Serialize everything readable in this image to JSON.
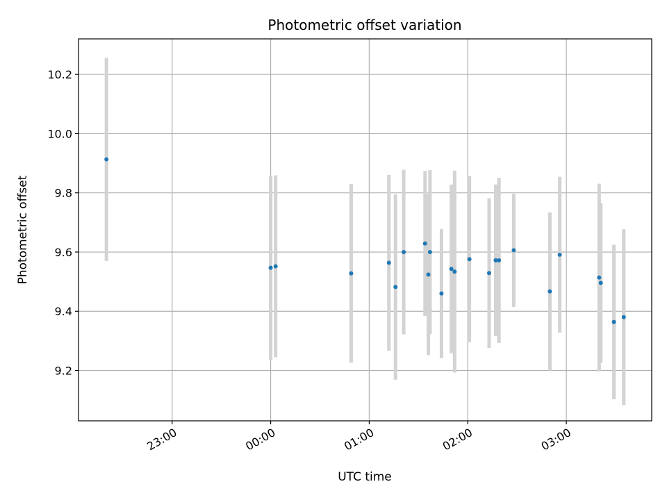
{
  "chart_data": {
    "type": "scatter",
    "title": "Photometric offset variation",
    "xlabel": "UTC time",
    "ylabel": "Photometric offset",
    "x_ticks": [
      "23:00",
      "00:00",
      "01:00",
      "02:00",
      "03:00"
    ],
    "y_ticks": [
      "9.2",
      "9.4",
      "9.6",
      "9.8",
      "10.0",
      "10.2"
    ],
    "xlim": [
      "22:03",
      "03:52"
    ],
    "ylim": [
      9.03,
      10.32
    ],
    "grid": true,
    "marker_color": "#1f77b4",
    "errorbar_color": "#d3d3d3",
    "series": [
      {
        "points": [
          {
            "x": "22:20",
            "y": 9.913,
            "yerr": 0.343
          },
          {
            "x": "24:00",
            "y": 9.547,
            "yerr": 0.31
          },
          {
            "x": "24:03",
            "y": 9.552,
            "yerr": 0.307
          },
          {
            "x": "00:49",
            "y": 9.528,
            "yerr": 0.302
          },
          {
            "x": "01:12",
            "y": 9.564,
            "yerr": 0.297
          },
          {
            "x": "01:16",
            "y": 9.482,
            "yerr": 0.313
          },
          {
            "x": "01:21",
            "y": 9.6,
            "yerr": 0.278
          },
          {
            "x": "01:34",
            "y": 9.629,
            "yerr": 0.245
          },
          {
            "x": "01:36",
            "y": 9.524,
            "yerr": 0.272
          },
          {
            "x": "01:37",
            "y": 9.6,
            "yerr": 0.277
          },
          {
            "x": "01:44",
            "y": 9.46,
            "yerr": 0.218
          },
          {
            "x": "01:50",
            "y": 9.543,
            "yerr": 0.285
          },
          {
            "x": "01:52",
            "y": 9.534,
            "yerr": 0.341
          },
          {
            "x": "02:01",
            "y": 9.576,
            "yerr": 0.281
          },
          {
            "x": "02:13",
            "y": 9.529,
            "yerr": 0.253
          },
          {
            "x": "02:17",
            "y": 9.572,
            "yerr": 0.256
          },
          {
            "x": "02:19",
            "y": 9.572,
            "yerr": 0.279
          },
          {
            "x": "02:28",
            "y": 9.606,
            "yerr": 0.191
          },
          {
            "x": "02:50",
            "y": 9.467,
            "yerr": 0.267
          },
          {
            "x": "02:56",
            "y": 9.591,
            "yerr": 0.263
          },
          {
            "x": "03:20",
            "y": 9.514,
            "yerr": 0.317
          },
          {
            "x": "03:21",
            "y": 9.496,
            "yerr": 0.27
          },
          {
            "x": "03:29",
            "y": 9.364,
            "yerr": 0.261
          },
          {
            "x": "03:35",
            "y": 9.38,
            "yerr": 0.297
          }
        ]
      }
    ]
  }
}
